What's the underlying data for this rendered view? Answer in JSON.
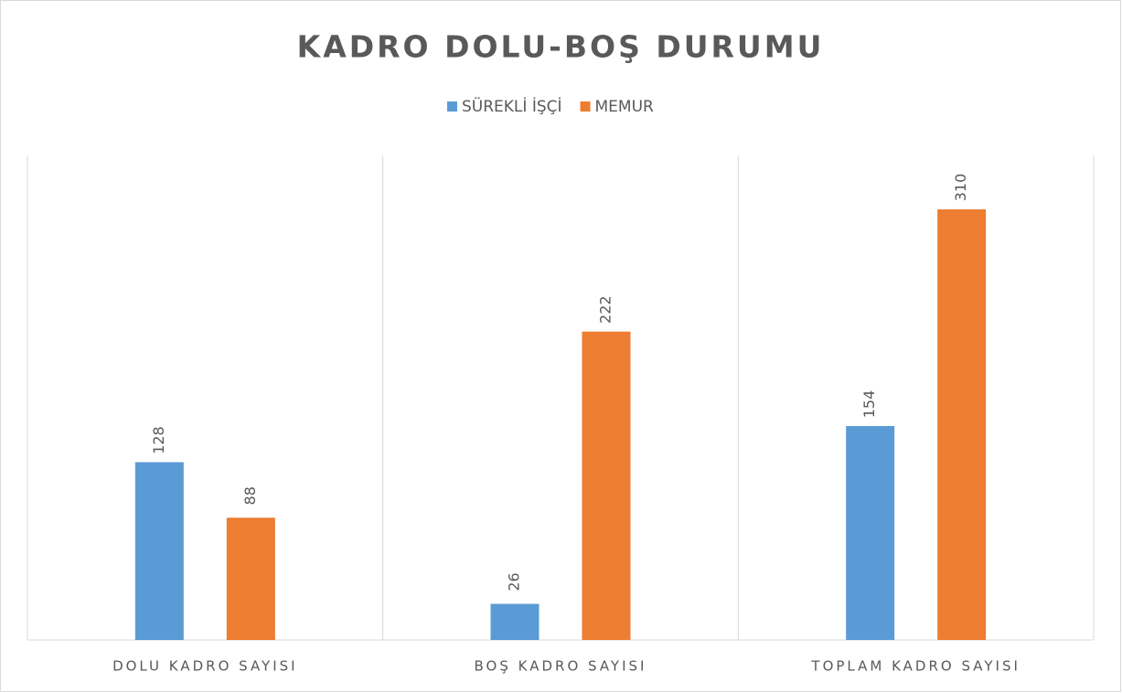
{
  "chart_data": {
    "type": "bar",
    "title": "KADRO DOLU-BOŞ DURUMU",
    "categories": [
      "DOLU KADRO SAYISI",
      "BOŞ KADRO SAYISI",
      "TOPLAM KADRO SAYISI"
    ],
    "series": [
      {
        "name": "SÜREKLİ İŞÇİ",
        "color": "#5b9bd5",
        "values": [
          128,
          26,
          154
        ]
      },
      {
        "name": "MEMUR",
        "color": "#ed7d31",
        "values": [
          88,
          222,
          310
        ]
      }
    ],
    "legend": "top"
  }
}
